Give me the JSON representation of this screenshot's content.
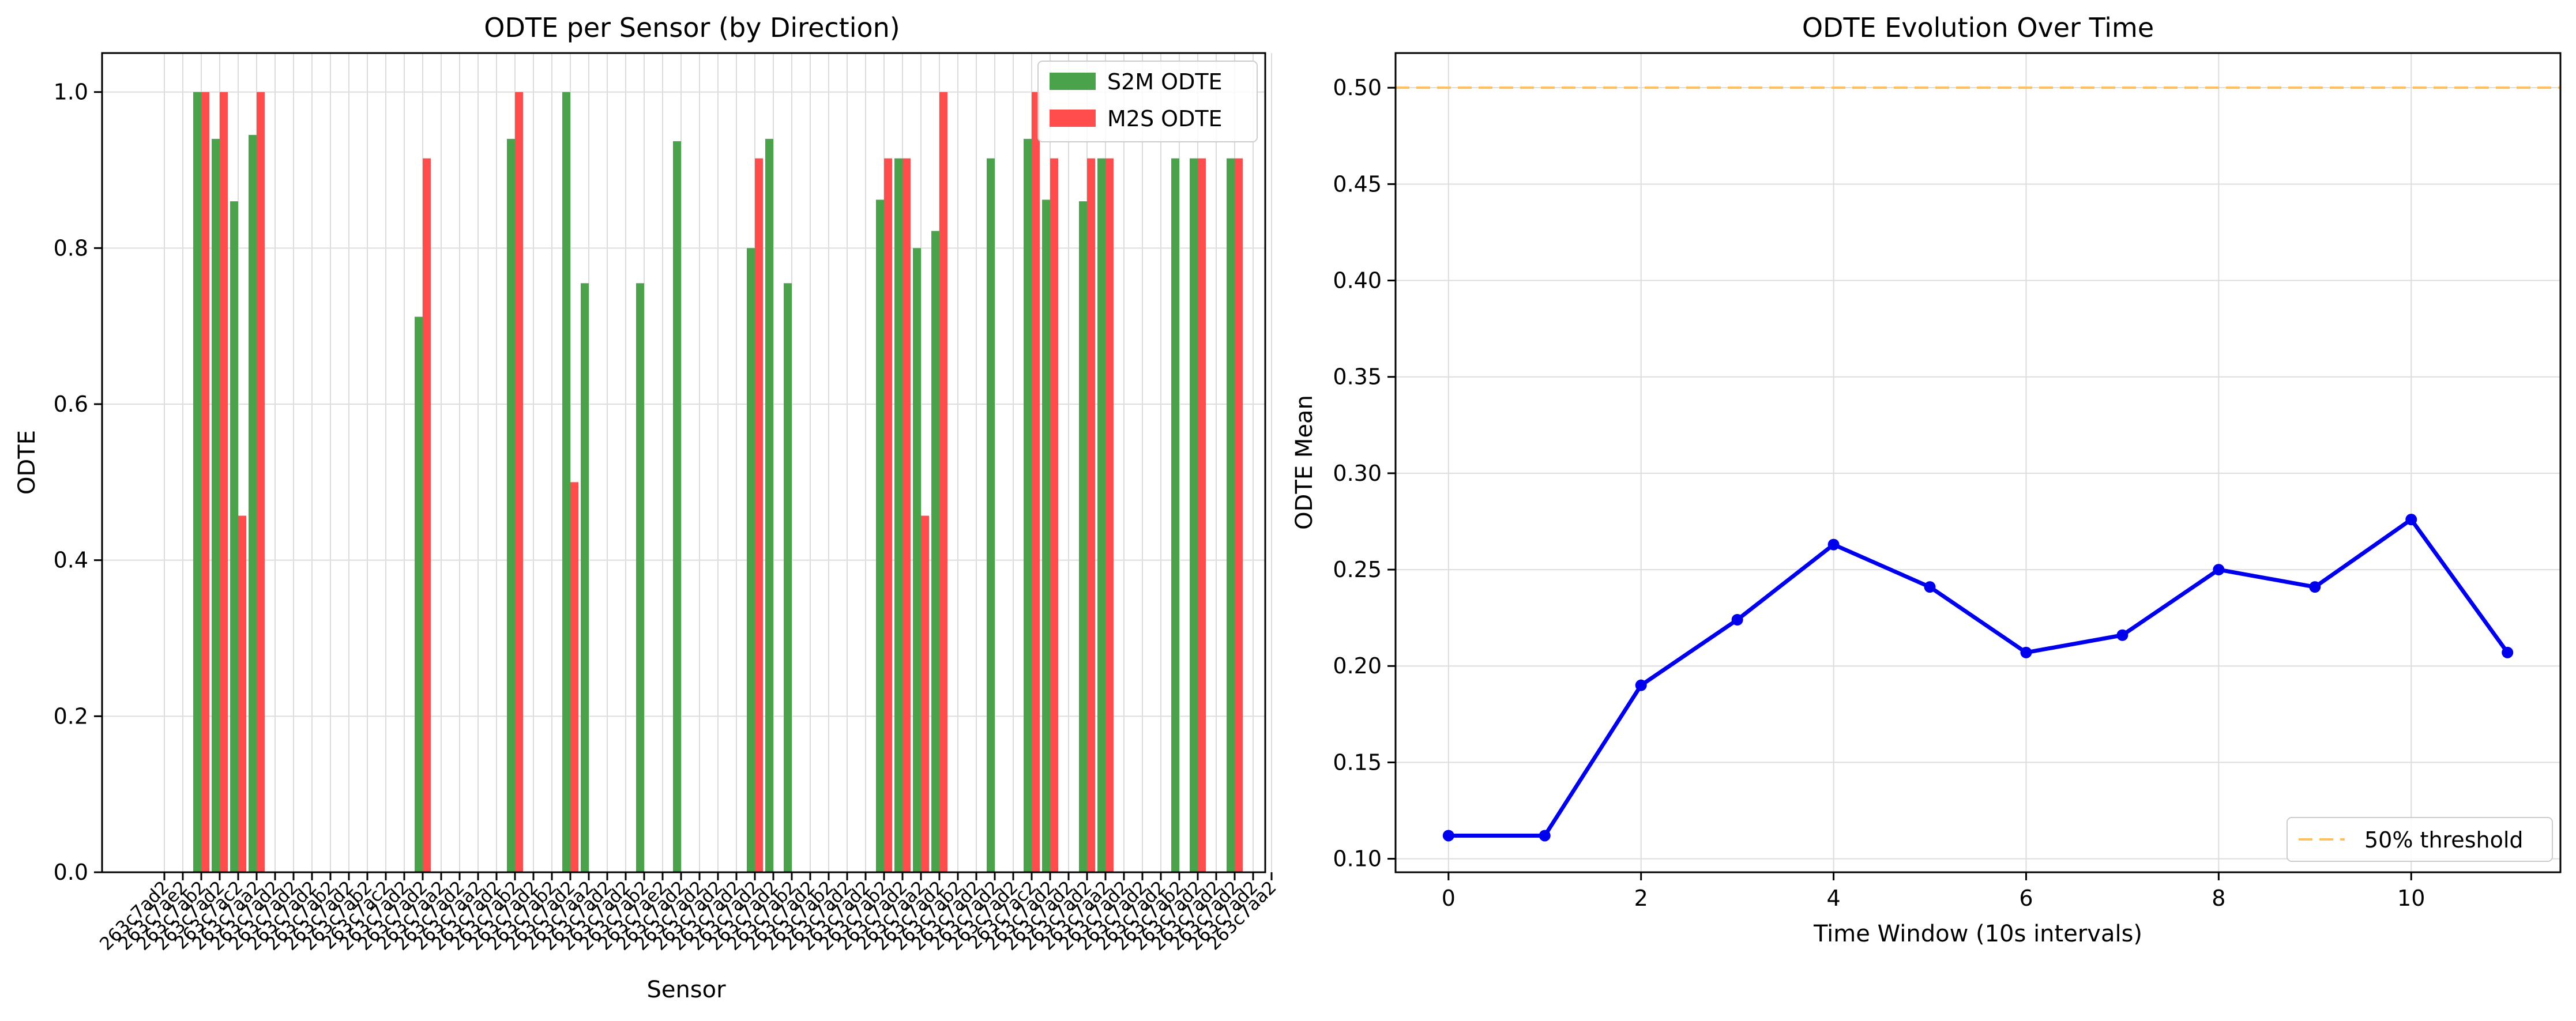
{
  "colors": {
    "s2m": "#4aa24a",
    "m2s": "#ff4d4d",
    "line": "#0000ee",
    "threshold": "#ffbf59",
    "grid": "#dddddd"
  },
  "chart_data": [
    {
      "type": "bar",
      "title": "ODTE per Sensor (by Direction)",
      "xlabel": "Sensor",
      "ylabel": "ODTE",
      "ylim": [
        0,
        1.05
      ],
      "yticks": [
        "0.0",
        "0.2",
        "0.4",
        "0.6",
        "0.8",
        "1.0"
      ],
      "grid": true,
      "legend_position": "top-right",
      "categories": [
        "263c7ad2",
        "263c7ae2",
        "263c7ab2",
        "263c7ad2",
        "263c7ac2",
        "263c7aa2",
        "263c7ad2",
        "263c7ad2",
        "263c7ad2",
        "263c7ab2",
        "263c7ad2",
        "263c7ab2",
        "263c7ac2",
        "263c7ad2",
        "263c7ad2",
        "263c7aa2",
        "263c7ad2",
        "263c7aa2",
        "263c7ad2",
        "263c7ab2",
        "263c7ad2",
        "263c7ab2",
        "263c7ad2",
        "263c7aa2",
        "263c7ad2",
        "263c7ad2",
        "263c7ab2",
        "263c7ae2",
        "263c7ad2",
        "263c7ad2",
        "263c7ad2",
        "263c7ad2",
        "263c7ad2",
        "263c7ad2",
        "263c7ab2",
        "263c7ad2",
        "263c7ab2",
        "263c7ad2",
        "263c7ad2",
        "263c7ab2",
        "263c7ad2",
        "263c7aa2",
        "263c7ad2",
        "263c7ab2",
        "263c7ad2",
        "263c7ad2",
        "263c7ad2",
        "263c7ac2",
        "263c7ad2",
        "263c7ad2",
        "263c7ad2",
        "263c7aa2",
        "263c7ad2",
        "263c7ad2",
        "263c7ad2",
        "263c7ab2",
        "263c7ad2",
        "263c7ad2",
        "263c7ad2",
        "263c7ad2",
        "263c7aa2"
      ],
      "series": [
        {
          "name": "S2M ODTE",
          "values": [
            0,
            0,
            1.0,
            0.94,
            0.86,
            0.945,
            0,
            0,
            0,
            0,
            0,
            0,
            0,
            0,
            0.712,
            0,
            0,
            0,
            0,
            0.94,
            0,
            0,
            1.0,
            0.755,
            0,
            0,
            0.755,
            0,
            0.937,
            0,
            0,
            0,
            0.8,
            0.94,
            0.755,
            0,
            0,
            0,
            0,
            0.862,
            0.915,
            0.8,
            0.822,
            0,
            0,
            0.915,
            0,
            0.94,
            0.862,
            0,
            0.86,
            0.915,
            0,
            0,
            0,
            0.915,
            0.915,
            0,
            0.915,
            0,
            0
          ]
        },
        {
          "name": "M2S ODTE",
          "values": [
            0,
            0,
            1.0,
            1.0,
            0.457,
            1.0,
            0,
            0,
            0,
            0,
            0,
            0,
            0,
            0,
            0.915,
            0,
            0,
            0,
            0,
            1.0,
            0,
            0,
            0.5,
            0,
            0,
            0,
            0,
            0,
            0,
            0,
            0,
            0,
            0.915,
            0,
            0,
            0,
            0,
            0,
            0,
            0.915,
            0.915,
            0.457,
            1.0,
            0,
            0,
            0,
            0,
            1.0,
            0.915,
            0,
            0.915,
            0.915,
            0,
            0,
            0,
            0,
            0.915,
            0,
            0.915,
            0,
            0
          ]
        }
      ]
    },
    {
      "type": "line",
      "title": "ODTE Evolution Over Time",
      "xlabel": "Time Window (10s intervals)",
      "ylabel": "ODTE Mean",
      "xlim": [
        -0.55,
        11.55
      ],
      "ylim": [
        0.093,
        0.518
      ],
      "xticks": [
        "0",
        "2",
        "4",
        "6",
        "8",
        "10"
      ],
      "yticks": [
        "0.10",
        "0.15",
        "0.20",
        "0.25",
        "0.30",
        "0.35",
        "0.40",
        "0.45",
        "0.50"
      ],
      "grid": true,
      "legend_position": "bottom-right",
      "x": [
        0,
        1,
        2,
        3,
        4,
        5,
        6,
        7,
        8,
        9,
        10,
        11
      ],
      "values": [
        0.112,
        0.112,
        0.19,
        0.224,
        0.263,
        0.241,
        0.207,
        0.216,
        0.25,
        0.241,
        0.276,
        0.207
      ],
      "threshold": {
        "value": 0.5,
        "label": "50% threshold"
      }
    }
  ]
}
